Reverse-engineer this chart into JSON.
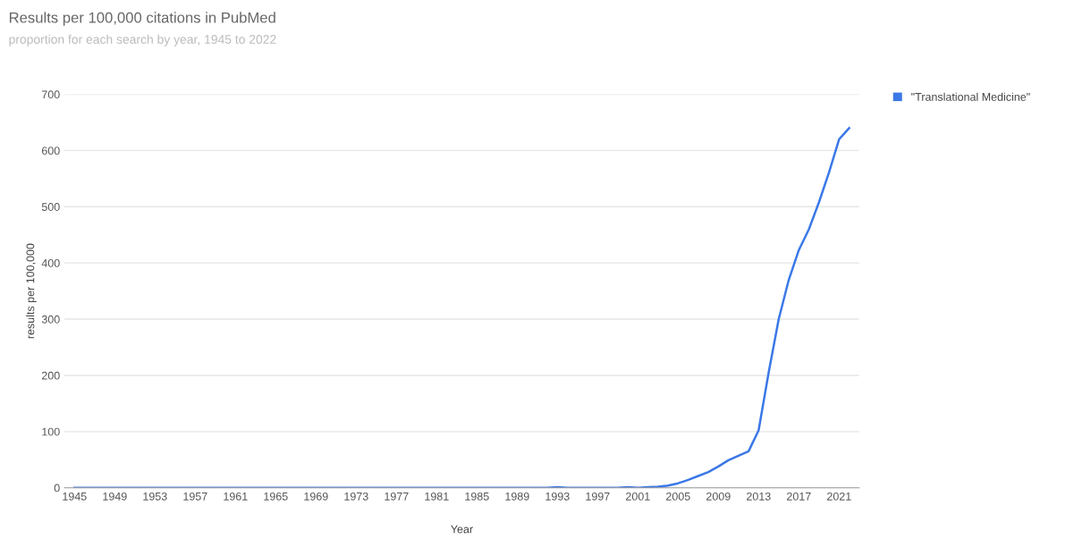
{
  "chart_data": {
    "type": "line",
    "title": "Results per 100,000 citations in PubMed",
    "subtitle": "proportion for each search by year, 1945 to 2022",
    "xlabel": "Year",
    "ylabel": "results per 100,000",
    "x": [
      1945,
      1946,
      1947,
      1948,
      1949,
      1950,
      1951,
      1952,
      1953,
      1954,
      1955,
      1956,
      1957,
      1958,
      1959,
      1960,
      1961,
      1962,
      1963,
      1964,
      1965,
      1966,
      1967,
      1968,
      1969,
      1970,
      1971,
      1972,
      1973,
      1974,
      1975,
      1976,
      1977,
      1978,
      1979,
      1980,
      1981,
      1982,
      1983,
      1984,
      1985,
      1986,
      1987,
      1988,
      1989,
      1990,
      1991,
      1992,
      1993,
      1994,
      1995,
      1996,
      1997,
      1998,
      1999,
      2000,
      2001,
      2002,
      2003,
      2004,
      2005,
      2006,
      2007,
      2008,
      2009,
      2010,
      2011,
      2012,
      2013,
      2014,
      2015,
      2016,
      2017,
      2018,
      2019,
      2020,
      2021,
      2022
    ],
    "series": [
      {
        "name": "\"Translational Medicine\"",
        "color": "#3b78e7",
        "values": [
          0,
          0,
          0,
          0,
          0,
          0,
          0,
          0,
          0,
          0,
          0,
          0,
          0,
          0,
          0,
          0,
          0,
          0,
          0,
          0,
          0,
          0,
          0,
          0,
          0,
          0,
          0,
          0,
          0,
          0,
          0,
          0,
          0,
          0,
          0,
          0,
          0,
          0,
          0,
          0,
          0,
          0,
          0,
          0,
          0,
          0,
          0,
          0,
          1,
          0,
          0,
          0,
          0,
          0,
          0,
          1,
          0,
          1,
          2,
          4,
          8,
          14,
          21,
          28,
          38,
          49,
          57,
          65,
          102,
          205,
          300,
          370,
          423,
          460,
          508,
          561,
          620,
          640
        ]
      }
    ],
    "xlim": [
      1944,
      2023
    ],
    "xticks": [
      1945,
      1949,
      1953,
      1957,
      1961,
      1965,
      1969,
      1973,
      1977,
      1981,
      1985,
      1989,
      1993,
      1997,
      2001,
      2005,
      2009,
      2013,
      2017,
      2021
    ],
    "ylim": [
      0,
      700
    ],
    "yticks": [
      0,
      100,
      200,
      300,
      400,
      500,
      600,
      700
    ],
    "grid": "y",
    "legend": "top right",
    "marker": "none",
    "line_style": "solid"
  }
}
